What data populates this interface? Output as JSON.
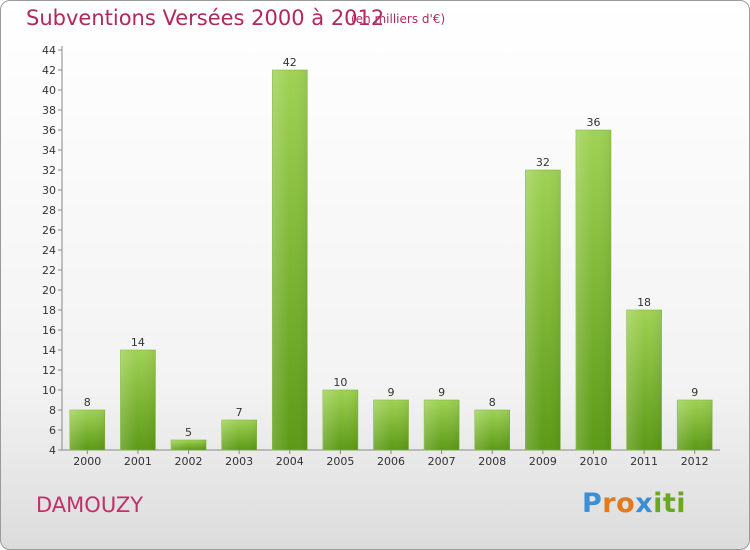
{
  "title": "Subventions Versées 2000 à 2012",
  "subtitle": "(en milliers d'€)",
  "commune": "DAMOUZY",
  "brand": {
    "letters": [
      "P",
      "r",
      "o",
      "x",
      "i",
      "t",
      "i"
    ],
    "colors": [
      "#3a8fd6",
      "#e07a1c",
      "#e07a1c",
      "#3a8fd6",
      "#6aa820",
      "#6aa820",
      "#6aa820"
    ]
  },
  "chart_data": {
    "type": "bar",
    "title": "Subventions Versées 2000 à 2012",
    "subtitle": "(en milliers d'€)",
    "xlabel": "",
    "ylabel": "",
    "categories": [
      "2000",
      "2001",
      "2002",
      "2003",
      "2004",
      "2005",
      "2006",
      "2007",
      "2008",
      "2009",
      "2010",
      "2011",
      "2012"
    ],
    "values": [
      8,
      14,
      5,
      7,
      42,
      10,
      9,
      9,
      8,
      32,
      36,
      18,
      9
    ],
    "ylim": [
      4,
      44
    ],
    "yticks": [
      4,
      6,
      8,
      10,
      12,
      14,
      16,
      18,
      20,
      22,
      24,
      26,
      28,
      30,
      32,
      34,
      36,
      38,
      40,
      42,
      44
    ],
    "grid": false,
    "bar_color": "#7cbe3a"
  }
}
